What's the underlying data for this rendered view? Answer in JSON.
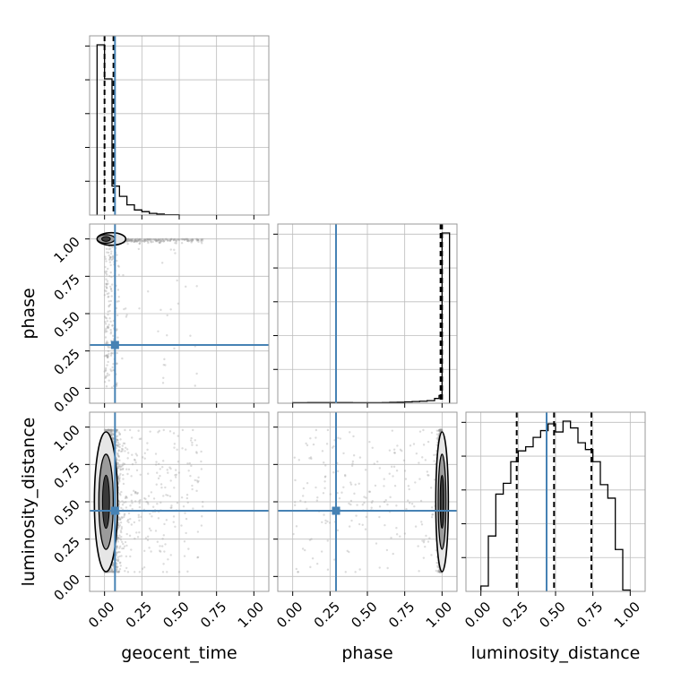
{
  "chart_data": {
    "type": "corner",
    "parameters": [
      "geocent_time",
      "phase",
      "luminosity_distance"
    ],
    "axis_range": [
      -0.1,
      1.1
    ],
    "tick_values": [
      0.0,
      0.25,
      0.5,
      0.75,
      1.0
    ],
    "tick_labels": [
      "0.00",
      "0.25",
      "0.50",
      "0.75",
      "1.00"
    ],
    "grid": true,
    "colors": {
      "truth": "#4682b4",
      "hist": "#000000",
      "points": "#9a9a9a",
      "frame": "#999999",
      "grid": "#bdbdbd"
    },
    "truths": {
      "geocent_time": 0.07,
      "phase": 0.29,
      "luminosity_distance": 0.44
    },
    "histograms": [
      {
        "parameter": "geocent_time",
        "bin_edges": [
          -0.05,
          -0.0,
          0.05,
          0.1,
          0.15,
          0.2,
          0.25,
          0.3,
          0.35,
          0.4,
          0.5
        ],
        "values": [
          100,
          80,
          17,
          11,
          6,
          3,
          2,
          1,
          0.6,
          0.2
        ],
        "quantile_lines": [
          0.0,
          0.06
        ]
      },
      {
        "parameter": "phase",
        "bin_edges": [
          0.0,
          0.1,
          0.2,
          0.3,
          0.4,
          0.5,
          0.55,
          0.6,
          0.65,
          0.7,
          0.75,
          0.8,
          0.85,
          0.9,
          0.95,
          0.98,
          1.0,
          1.05
        ],
        "values": [
          0.3,
          0.4,
          0.4,
          0.4,
          0.3,
          0.3,
          0.3,
          0.4,
          0.5,
          0.6,
          0.8,
          1.0,
          1.2,
          1.5,
          2.8,
          4.5,
          100
        ],
        "quantile_lines": [
          0.99,
          1.0
        ]
      },
      {
        "parameter": "luminosity_distance",
        "bin_edges": [
          0.0,
          0.05,
          0.1,
          0.15,
          0.2,
          0.25,
          0.3,
          0.35,
          0.4,
          0.45,
          0.5,
          0.55,
          0.6,
          0.65,
          0.7,
          0.75,
          0.8,
          0.85,
          0.9,
          0.95,
          1.0
        ],
        "values": [
          4,
          41,
          72,
          80,
          96,
          104,
          107,
          114,
          119,
          124,
          118,
          126,
          121,
          110,
          105,
          96,
          79,
          69,
          31,
          1
        ],
        "quantile_lines": [
          0.24,
          0.49,
          0.74
        ]
      }
    ],
    "scatter_panels": [
      {
        "x": "geocent_time",
        "y": "phase"
      },
      {
        "x": "geocent_time",
        "y": "luminosity_distance"
      },
      {
        "x": "phase",
        "y": "luminosity_distance"
      }
    ]
  }
}
